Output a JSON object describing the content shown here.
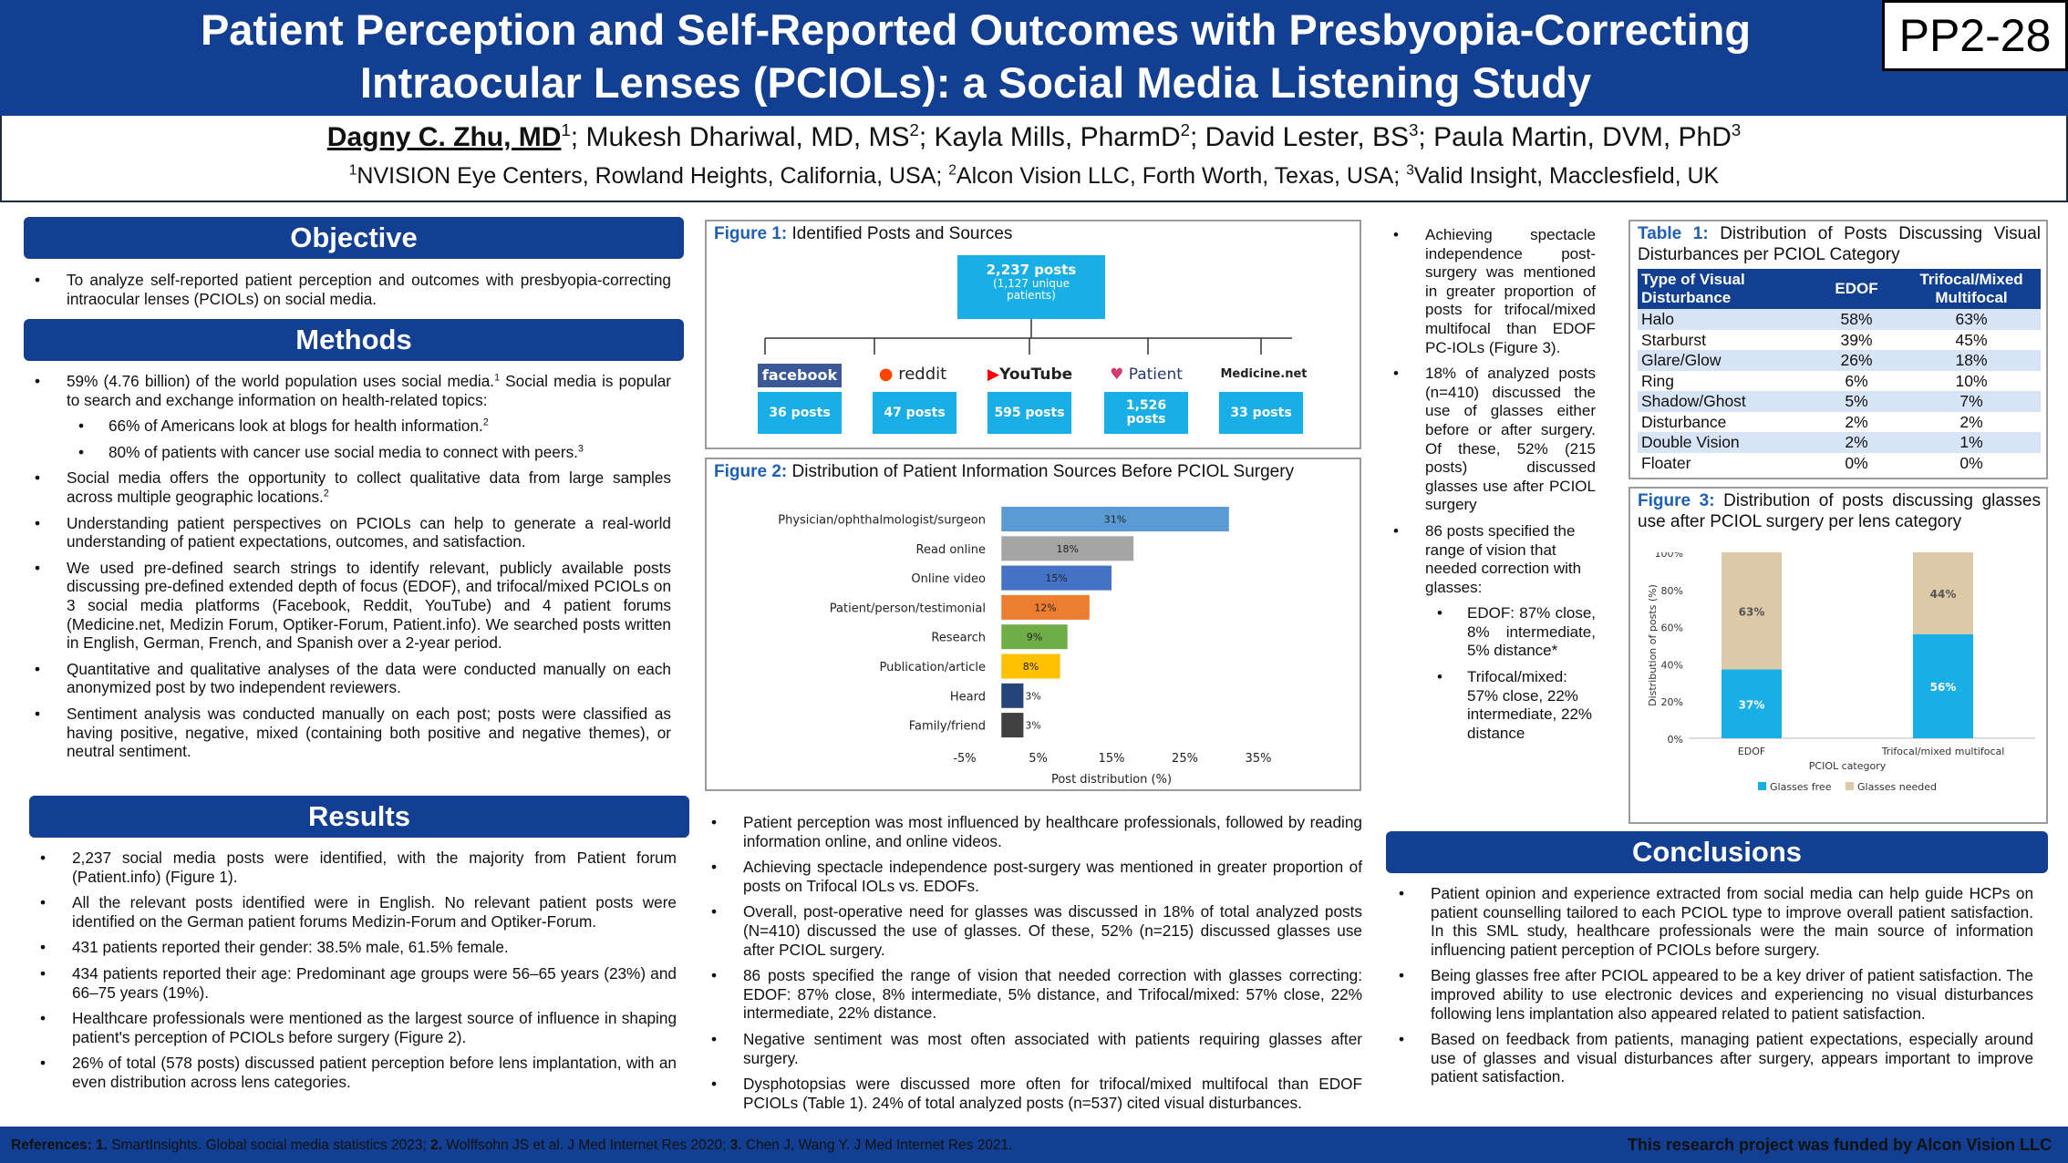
{
  "header": {
    "title": "Patient Perception and Self-Reported Outcomes with Presbyopia-Correcting Intraocular Lenses (PCIOLs): a Social Media Listening Study",
    "code": "PP2-28",
    "first_author": "Dagny C. Zhu, MD",
    "first_author_sup": "1",
    "other_authors": [
      {
        "name": "; Mukesh Dhariwal, MD, MS",
        "sup": "2"
      },
      {
        "name": "; Kayla Mills, PharmD",
        "sup": "2"
      },
      {
        "name": "; David Lester, BS",
        "sup": "3"
      },
      {
        "name": "; Paula Martin, DVM, PhD",
        "sup": "3"
      }
    ],
    "affiliations": [
      {
        "sup": "1",
        "text": "NVISION Eye Centers, Rowland Heights, California, USA; "
      },
      {
        "sup": "2",
        "text": "Alcon Vision LLC, Forth Worth, Texas, USA; "
      },
      {
        "sup": "3",
        "text": "Valid Insight, Macclesfield, UK"
      }
    ]
  },
  "objective": {
    "heading": "Objective",
    "bullets": [
      "To analyze self-reported patient perception and outcomes with presbyopia-correcting intraocular lenses (PCIOLs) on social media."
    ]
  },
  "methods": {
    "heading": "Methods",
    "b1": "59% (4.76 billion) of the world population uses social media.",
    "b1_sup": "1",
    "b1_rest": " Social media is popular to search and exchange information on health-related topics:",
    "s1": "66% of Americans look at blogs for health information.",
    "s1_sup": "2",
    "s2": "80% of patients with cancer use social media to connect with peers.",
    "s2_sup": "3",
    "b2": "Social media offers the opportunity to collect qualitative data from large samples across multiple geographic locations.",
    "b2_sup": "2",
    "b3": "Understanding patient perspectives on PCIOLs can help to generate a real-world understanding of patient expectations, outcomes, and satisfaction.",
    "b4": "We used pre-defined search strings to identify relevant, publicly available posts discussing pre-defined extended depth of focus (EDOF), and trifocal/mixed PCIOLs on 3 social media platforms (Facebook, Reddit, YouTube) and 4 patient forums (Medicine.net, Medizin Forum, Optiker-Forum, Patient.info). We searched posts written in English, German, French, and Spanish over a 2-year period.",
    "b5": "Quantitative and qualitative analyses of the data were conducted manually on each anonymized post by two independent reviewers.",
    "b6": "Sentiment analysis was conducted manually on each post; posts were classified as having positive, negative, mixed (containing both positive and negative themes), or neutral sentiment."
  },
  "results": {
    "heading": "Results",
    "bullets": [
      "2,237 social media posts were identified, with the majority from Patient forum (Patient.info) (Figure 1).",
      "All the relevant posts identified were in English. No relevant patient posts were identified on the German patient forums Medizin-Forum and Optiker-Forum.",
      "431 patients reported their gender: 38.5% male, 61.5% female.",
      "434 patients reported their age: Predominant age groups were 56–65 years (23%) and 66–75 years (19%).",
      "Healthcare professionals were mentioned as the largest source of  influence in shaping patient's perception of PCIOLs before surgery (Figure 2).",
      "26% of total (578 posts) discussed patient perception before lens implantation, with an even distribution across lens categories."
    ]
  },
  "figure1": {
    "label": "Figure 1:",
    "caption": " Identified Posts and Sources",
    "total": "2,237 posts",
    "total_sub": "(1,127 unique patients)",
    "sources": [
      {
        "logo": "facebook",
        "posts": "36 posts",
        "color": "#3b5998"
      },
      {
        "logo": "reddit",
        "posts": "47 posts",
        "color": "#222222"
      },
      {
        "logo": "YouTube",
        "posts": "595 posts",
        "color": "#222222"
      },
      {
        "logo": "Patient",
        "posts": "1,526 posts",
        "color": "#2a3a6b"
      },
      {
        "logo": "Medicine.net",
        "posts": "33 posts",
        "color": "#222222"
      }
    ]
  },
  "figure2": {
    "label": "Figure 2:",
    "caption": " Distribution of Patient Information Sources Before PCIOL Surgery",
    "chart_data": {
      "type": "bar",
      "orientation": "horizontal",
      "categories": [
        "Physician/ophthalmologist/surgeon",
        "Read online",
        "Online video",
        "Patient/person/testimonial",
        "Research",
        "Publication/article",
        "Heard",
        "Family/friend"
      ],
      "values": [
        31,
        18,
        15,
        12,
        9,
        8,
        3,
        3
      ],
      "value_labels": [
        "31%",
        "18%",
        "15%",
        "12%",
        "9%",
        "8%",
        "3%",
        "3%"
      ],
      "colors": [
        "#5b9bd5",
        "#a5a5a5",
        "#4472c4",
        "#ed7d31",
        "#70ad47",
        "#ffc000",
        "#264478",
        "#404040"
      ],
      "xlim": [
        -5,
        35
      ],
      "xticks": [
        "-5%",
        "5%",
        "15%",
        "25%",
        "35%"
      ],
      "xlabel": "Post distribution (%)"
    }
  },
  "middle_bullets": [
    "Patient perception was most influenced by healthcare professionals, followed by reading information online, and online videos.",
    "Achieving spectacle independence post-surgery was mentioned in greater proportion of posts on Trifocal IOLs vs. EDOFs.",
    "Overall, post-operative need for glasses was discussed in 18% of total analyzed posts (N=410) discussed the use of glasses. Of these, 52% (n=215) discussed glasses use after PCIOL surgery.",
    "86 posts specified the range of vision that needed correction with glasses correcting: EDOF: 87% close, 8% intermediate, 5% distance, and Trifocal/mixed: 57% close, 22% intermediate, 22% distance.",
    "Negative sentiment was most often associated with patients requiring glasses after surgery.",
    "Dysphotopsias were discussed more often for trifocal/mixed multifocal than EDOF PCIOLs (Table 1). 24% of total analyzed posts (n=537) cited visual disturbances."
  ],
  "col3": {
    "bullets": [
      "Achieving spectacle independence post-surgery was mentioned in greater proportion of posts for trifocal/mixed multifocal than EDOF PC-IOLs (Figure 3).",
      "18% of analyzed posts (n=410) discussed the use of glasses either before or after surgery. Of these, 52% (215 posts) discussed glasses use after PCIOL surgery",
      "86 posts specified the range of vision that needed correction with glasses:"
    ],
    "sub": [
      "EDOF: 87% close, 8% intermediate, 5% distance*",
      "Trifocal/mixed: 57% close, 22% intermediate, 22% distance"
    ]
  },
  "table1": {
    "label": "Table 1:",
    "caption": " Distribution of Posts Discussing Visual Disturbances per PCIOL Category",
    "headers": [
      "Type of Visual Disturbance",
      "EDOF",
      "Trifocal/Mixed Multifocal"
    ],
    "rows": [
      [
        "Halo",
        "58%",
        "63%"
      ],
      [
        "Starburst",
        "39%",
        "45%"
      ],
      [
        "Glare/Glow",
        "26%",
        "18%"
      ],
      [
        "Ring",
        "6%",
        "10%"
      ],
      [
        "Shadow/Ghost",
        "5%",
        "7%"
      ],
      [
        "Disturbance",
        "2%",
        "2%"
      ],
      [
        "Double Vision",
        "2%",
        "1%"
      ],
      [
        "Floater",
        "0%",
        "0%"
      ]
    ]
  },
  "figure3": {
    "label": "Figure 3:",
    "caption": " Distribution of posts discussing glasses use after PCIOL surgery per lens category",
    "chart_data": {
      "type": "bar",
      "stacked": true,
      "categories": [
        "EDOF",
        "Trifocal/mixed multifocal"
      ],
      "series": [
        {
          "name": "Glasses free",
          "values": [
            37,
            56
          ],
          "labels": [
            "37%",
            "56%"
          ],
          "color": "#1aaee6"
        },
        {
          "name": "Glasses needed",
          "values": [
            63,
            44
          ],
          "labels": [
            "63%",
            "44%"
          ],
          "color": "#dcc9a7"
        }
      ],
      "ylim": [
        0,
        100
      ],
      "yticks": [
        "0%",
        "20%",
        "40%",
        "60%",
        "80%",
        "100%"
      ],
      "ylabel": "Distribution of posts (%)",
      "xlabel": "PCIOL category",
      "legend": "bottom"
    }
  },
  "conclusions": {
    "heading": "Conclusions",
    "bullets": [
      "Patient opinion and experience extracted from social media can help guide HCPs on patient counselling tailored to each PCIOL type to improve overall patient satisfaction. In this SML study, healthcare professionals were the main source of information influencing patient perception of PCIOLs before surgery.",
      "Being glasses free after PCIOL appeared to be a key driver of patient satisfaction. The improved ability to use electronic devices and experiencing no visual disturbances following lens implantation also appeared related to patient satisfaction.",
      "Based on feedback from patients, managing patient expectations, especially around use of glasses and visual disturbances after surgery, appears important to improve patient satisfaction."
    ]
  },
  "footer": {
    "refs_label": "References:",
    "refs": [
      {
        "n": " 1.",
        "text": " SmartInsights.  Global social media statistics 2023;"
      },
      {
        "n": " 2.",
        "text": " Wolffsohn JS et al. J Med Internet  Res 2020;"
      },
      {
        "n": " 3.",
        "text": " Chen J, Wang Y. J Med Internet  Res 2021."
      }
    ],
    "funding": "This research project was funded by Alcon Vision LLC"
  }
}
